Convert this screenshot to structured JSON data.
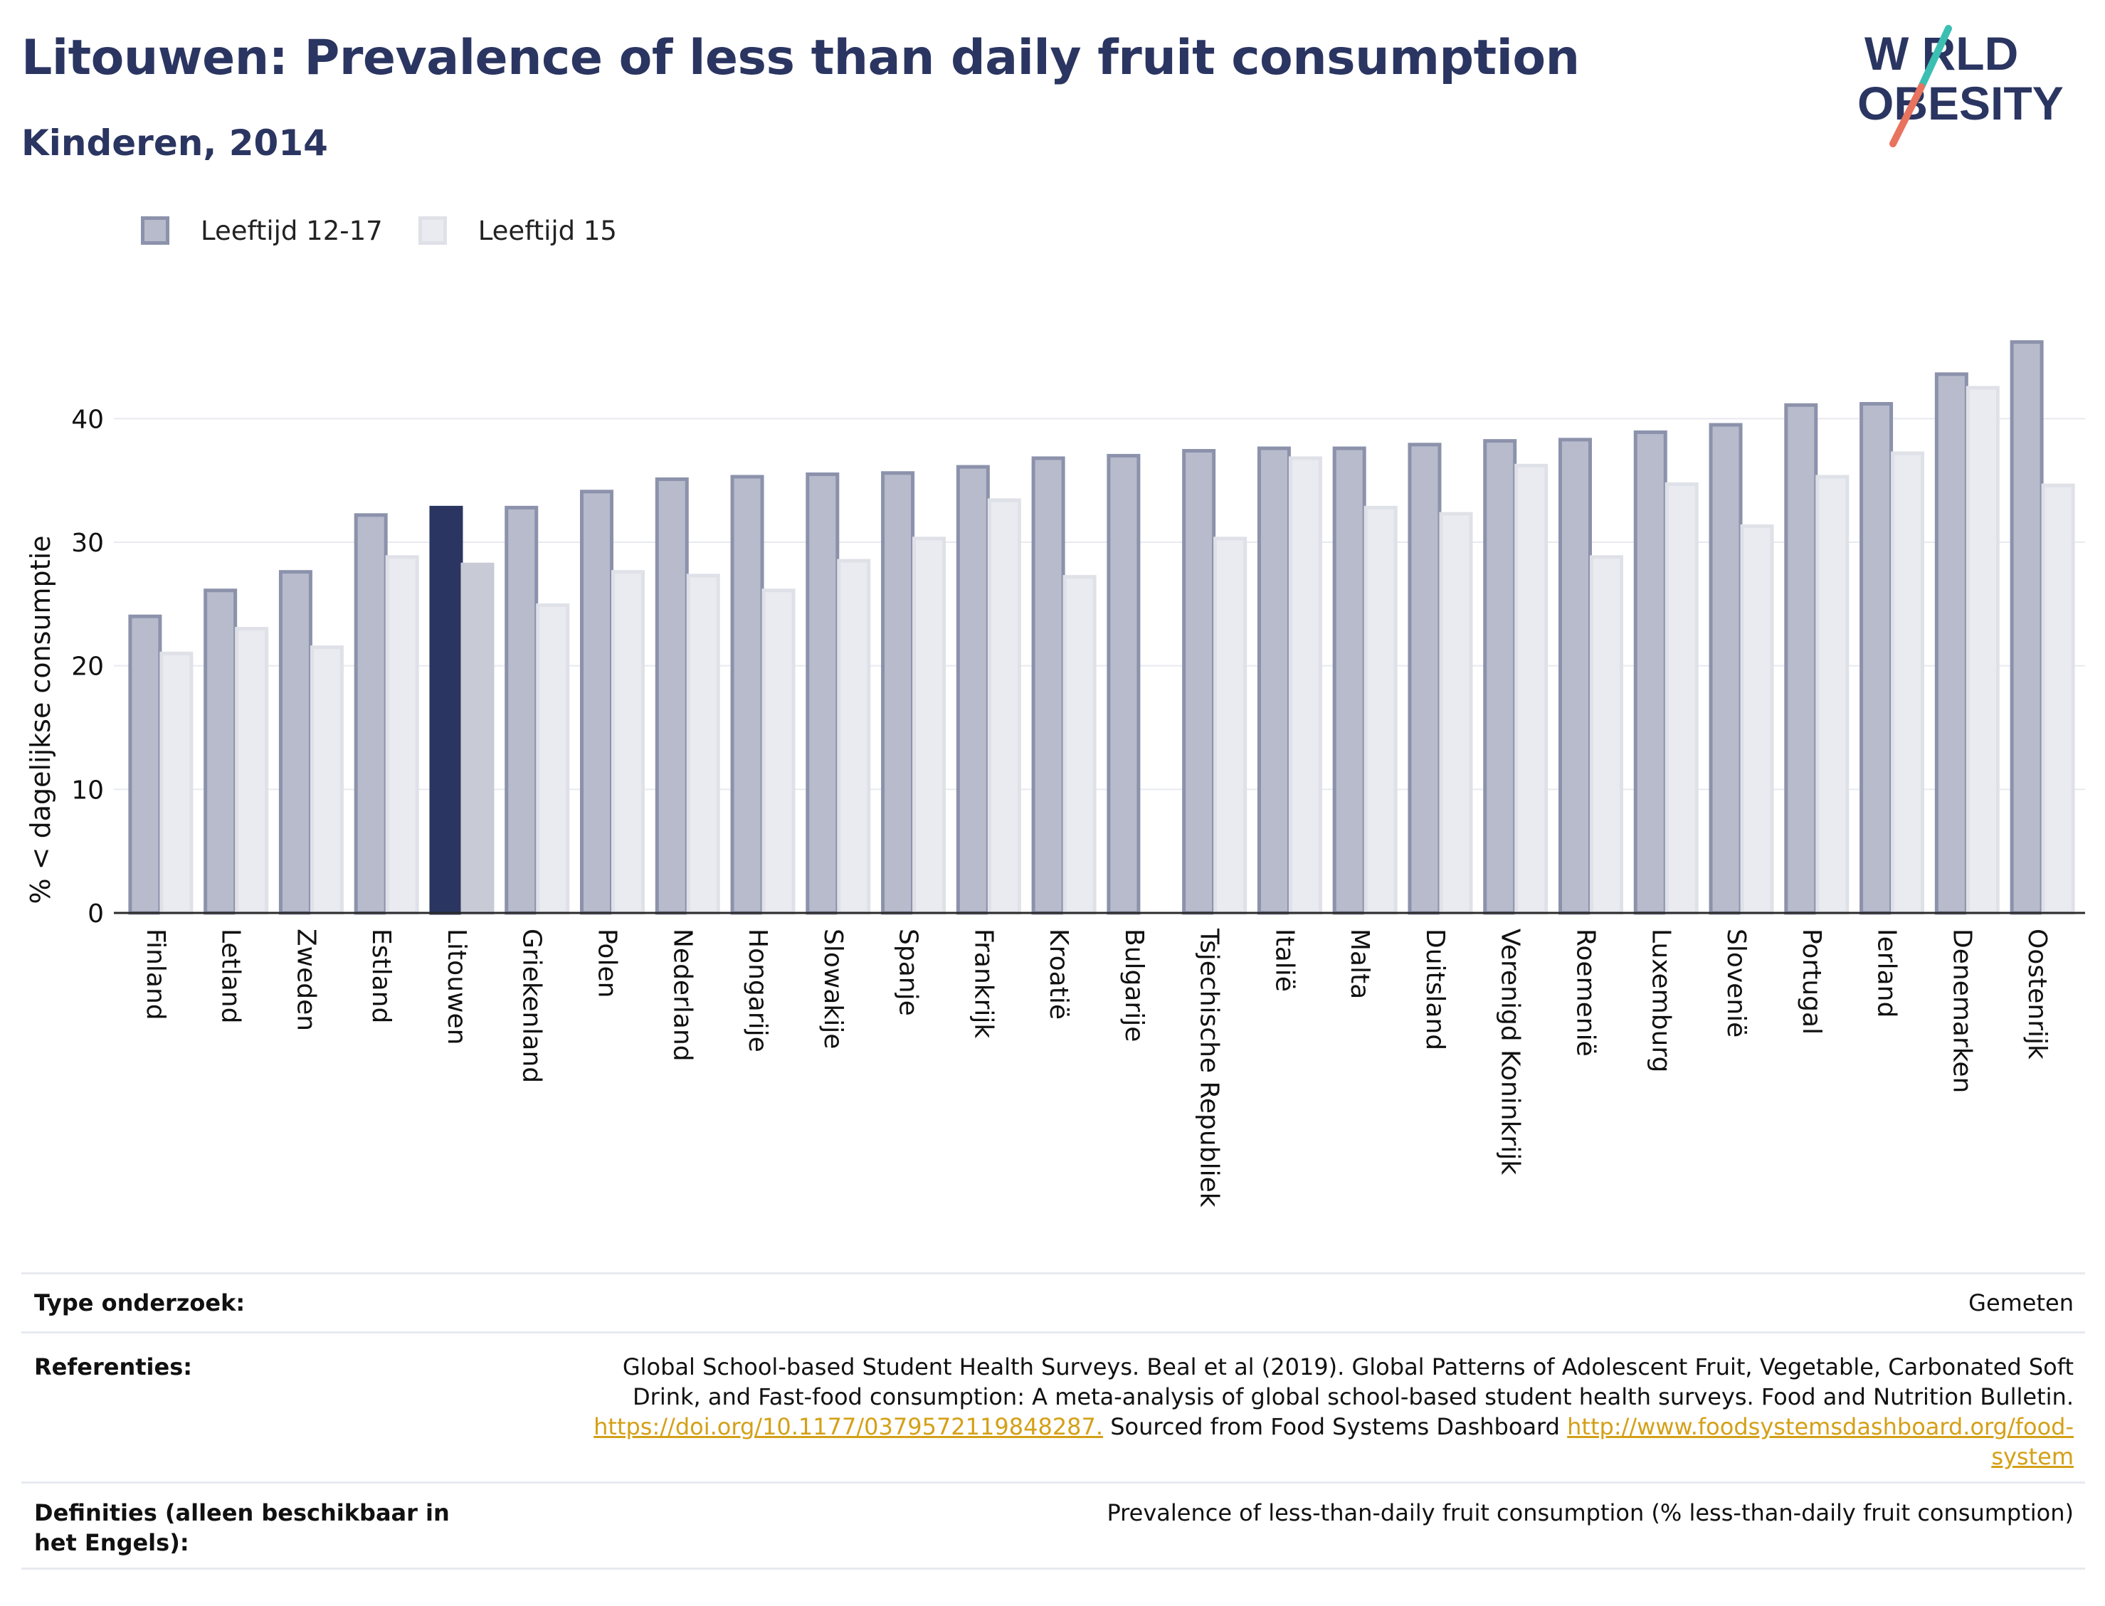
{
  "header": {
    "title": "Litouwen: Prevalence of less than daily fruit consumption",
    "subtitle": "Kinderen, 2014"
  },
  "logo": {
    "line1": "W RLD",
    "line2": "OBESITY",
    "text": "WORLD OBESITY"
  },
  "colors": {
    "title": "#2b3561",
    "series1_fill": "#b7bbcb",
    "series1_stroke": "#8c92ab",
    "series2_fill": "#eaebf0",
    "series2_stroke": "#dfe1e8",
    "highlight1": "#2b3561",
    "highlight2": "#c8cad6",
    "link": "#d4a017",
    "logo_teal": "#3cbfb3",
    "logo_red": "#e8735f"
  },
  "chart_data": {
    "type": "bar",
    "title": "Litouwen: Prevalence of less than daily fruit consumption",
    "subtitle": "Kinderen, 2014",
    "ylabel": "% < dagelijkse consumptie",
    "xlabel": "",
    "ylim": [
      0,
      50
    ],
    "yticks": [
      0,
      10,
      20,
      30,
      40
    ],
    "grid": true,
    "legend_position": "top-left",
    "highlight": "Litouwen",
    "categories": [
      "Finland",
      "Letland",
      "Zweden",
      "Estland",
      "Litouwen",
      "Griekenland",
      "Polen",
      "Nederland",
      "Hongarije",
      "Slowakije",
      "Spanje",
      "Frankrijk",
      "Kroatië",
      "Bulgarije",
      "Tsjechische Republiek",
      "Italië",
      "Malta",
      "Duitsland",
      "Verenigd Koninkrijk",
      "Roemenië",
      "Luxemburg",
      "Slovenië",
      "Portugal",
      "Ierland",
      "Denemarken",
      "Oostenrijk"
    ],
    "series": [
      {
        "name": "Leeftijd 12-17",
        "values": [
          24.0,
          26.1,
          27.6,
          32.2,
          32.8,
          32.8,
          34.1,
          35.1,
          35.3,
          35.5,
          35.6,
          36.1,
          36.8,
          37.0,
          37.4,
          37.6,
          37.6,
          37.9,
          38.2,
          38.3,
          38.9,
          39.5,
          41.1,
          41.2,
          43.6,
          46.2
        ]
      },
      {
        "name": "Leeftijd 15",
        "values": [
          21.0,
          23.0,
          21.5,
          28.8,
          28.2,
          24.9,
          27.6,
          27.3,
          26.1,
          28.5,
          30.3,
          33.4,
          27.2,
          null,
          30.3,
          36.8,
          32.8,
          32.3,
          36.2,
          28.8,
          34.7,
          31.3,
          35.3,
          37.2,
          42.5,
          34.6
        ]
      }
    ]
  },
  "info_table": {
    "type_label": "Type onderzoek:",
    "type_value": "Gemeten",
    "ref_label": "Referenties:",
    "ref_text_1": "Global School-based Student Health Surveys. Beal et al (2019). Global Patterns of Adolescent Fruit, Vegetable, Carbonated Soft Drink, and Fast-food consumption: A meta-analysis of global school-based student health surveys. Food and Nutrition Bulletin.",
    "ref_link_1": "https://doi.org/10.1177/0379572119848287.",
    "ref_text_2": " Sourced from Food Systems Dashboard ",
    "ref_link_2": "http://www.foodsystemsdashboard.org/food-system",
    "def_label": "Definities (alleen beschikbaar in het Engels):",
    "def_value": "Prevalence of less-than-daily fruit consumption (% less-than-daily fruit consumption)"
  }
}
